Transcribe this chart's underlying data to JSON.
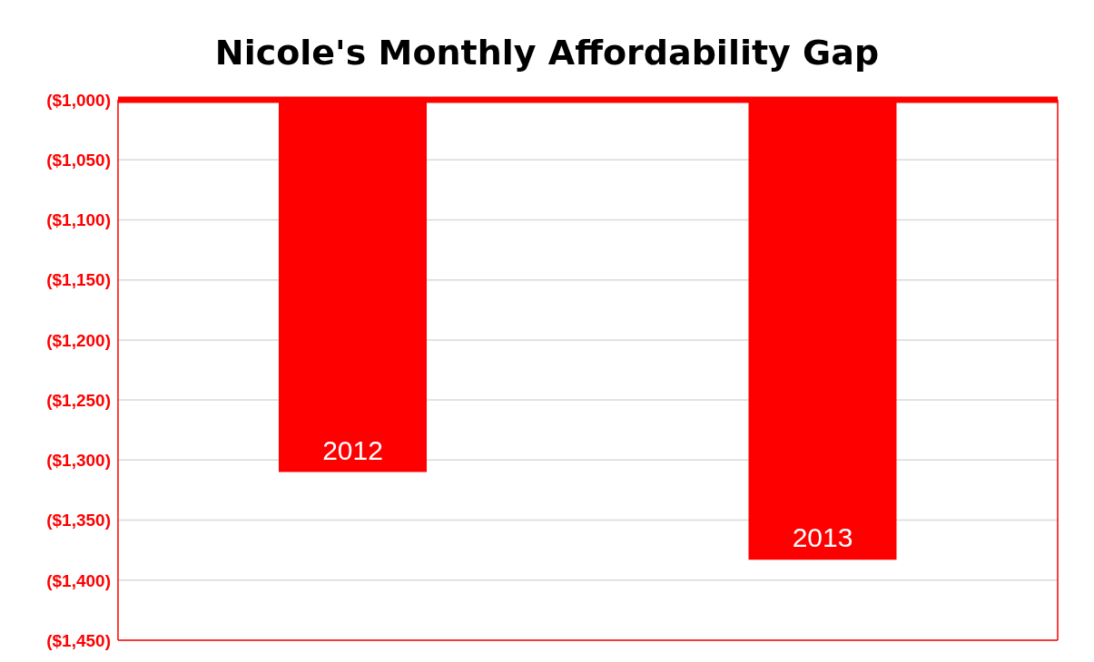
{
  "chart_data": {
    "type": "bar",
    "title": "Nicole's Monthly Affordability Gap",
    "categories": [
      "2012",
      "2013"
    ],
    "values": [
      -1310,
      -1383
    ],
    "color": "#ff0000",
    "ylim": [
      -1450,
      -1000
    ],
    "yticks": [
      {
        "value": -1450,
        "label": "($1,450)"
      },
      {
        "value": -1400,
        "label": "($1,400)"
      },
      {
        "value": -1350,
        "label": "($1,350)"
      },
      {
        "value": -1300,
        "label": "($1,300)"
      },
      {
        "value": -1250,
        "label": "($1,250)"
      },
      {
        "value": -1200,
        "label": "($1,200)"
      },
      {
        "value": -1150,
        "label": "($1,150)"
      },
      {
        "value": -1100,
        "label": "($1,100)"
      },
      {
        "value": -1050,
        "label": "($1,050)"
      },
      {
        "value": -1000,
        "label": "($1,000)"
      }
    ],
    "grid": "y",
    "legend": false
  }
}
